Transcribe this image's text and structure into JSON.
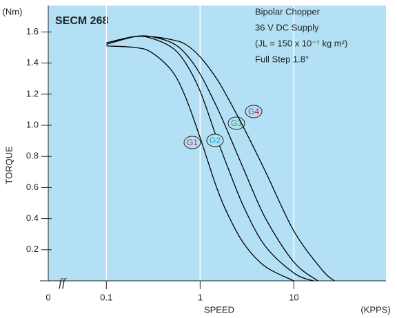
{
  "chart_data": {
    "type": "line",
    "title": "SECM 268",
    "annotations": [
      "Bipolar Chopper",
      "36 V DC Supply",
      "(JL = 150 x 10⁻⁷ kg m²)",
      "Full Step 1.8°"
    ],
    "x_label": "SPEED",
    "x_unit": "(KPPS)",
    "y_label": "TORQUE",
    "y_unit": "(Nm)",
    "x_origin_label": "0",
    "axis_break": "ff",
    "x_scale": "log",
    "xlim": [
      0.024,
      96
    ],
    "ylim": [
      0,
      1.77
    ],
    "xticks": [
      0.1,
      1,
      10
    ],
    "yticks": [
      0.2,
      0.4,
      0.6,
      0.8,
      {
        "value": 1,
        "label": "1.0"
      },
      1.2,
      1.4,
      1.6
    ],
    "grid": "x",
    "background": "#b3e0f5",
    "series": [
      {
        "name": "G1",
        "color": "#000000",
        "label_color": "#c8224a",
        "x": [
          0.1,
          0.2,
          0.3,
          0.5,
          0.7,
          1,
          1.5,
          2,
          3,
          5,
          10
        ],
        "values": [
          1.51,
          1.5,
          1.47,
          1.35,
          1.18,
          0.92,
          0.6,
          0.42,
          0.23,
          0.09,
          0
        ]
      },
      {
        "name": "G2",
        "color": "#000000",
        "label_color": "#1aa0d0",
        "x": [
          0.1,
          0.2,
          0.3,
          0.5,
          0.7,
          1,
          1.5,
          2,
          3,
          5,
          10,
          16
        ],
        "values": [
          1.53,
          1.57,
          1.56,
          1.5,
          1.4,
          1.22,
          0.92,
          0.72,
          0.46,
          0.22,
          0.05,
          0
        ]
      },
      {
        "name": "G3",
        "color": "#000000",
        "label_color": "#20a060",
        "x": [
          0.1,
          0.2,
          0.3,
          0.5,
          0.7,
          1,
          1.5,
          2,
          3,
          5,
          10,
          18
        ],
        "values": [
          1.53,
          1.57,
          1.57,
          1.53,
          1.46,
          1.33,
          1.12,
          0.95,
          0.7,
          0.4,
          0.12,
          0
        ]
      },
      {
        "name": "G4",
        "color": "#000000",
        "label_color": "#c8224a",
        "x": [
          0.1,
          0.2,
          0.3,
          0.5,
          0.7,
          1,
          1.5,
          2,
          3,
          5,
          10,
          20,
          27
        ],
        "values": [
          1.52,
          1.57,
          1.57,
          1.55,
          1.52,
          1.44,
          1.3,
          1.17,
          0.97,
          0.7,
          0.32,
          0.07,
          0
        ]
      }
    ]
  }
}
